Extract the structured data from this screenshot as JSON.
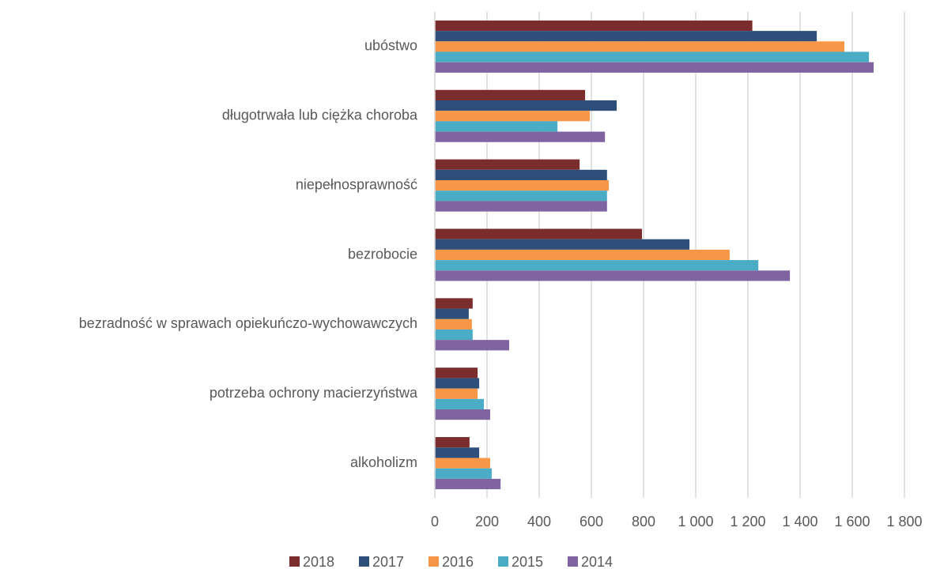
{
  "chart_data": {
    "type": "barh",
    "categories": [
      "ubóstwo",
      "długotrwała lub ciężka choroba",
      "niepełnosprawność",
      "bezrobocie",
      "bezradność w sprawach opiekuńczo-wychowawczych",
      "potrzeba ochrony macierzyństwa",
      "alkoholizm"
    ],
    "series": [
      {
        "name": "2018",
        "color": "#7b2c2c",
        "values": [
          1217,
          576,
          555,
          794,
          145,
          164,
          133
        ]
      },
      {
        "name": "2017",
        "color": "#2e4f79",
        "values": [
          1464,
          697,
          660,
          976,
          130,
          170,
          170
        ]
      },
      {
        "name": "2016",
        "color": "#f79646",
        "values": [
          1570,
          594,
          667,
          1130,
          142,
          164,
          212
        ]
      },
      {
        "name": "2015",
        "color": "#4bacc6",
        "values": [
          1664,
          470,
          660,
          1240,
          145,
          188,
          218
        ]
      },
      {
        "name": "2014",
        "color": "#8064a2",
        "values": [
          1682,
          652,
          660,
          1361,
          285,
          212,
          252
        ]
      }
    ],
    "xlim": [
      0,
      1800
    ],
    "xticks": [
      0,
      200,
      400,
      600,
      800,
      {
        "value": 1000,
        "label": "1 000"
      },
      {
        "value": 1200,
        "label": "1 200"
      },
      {
        "value": 1400,
        "label": "1 400"
      },
      {
        "value": 1600,
        "label": "1 600"
      },
      {
        "value": 1800,
        "label": "1 800"
      }
    ],
    "grid": true,
    "legend": "bottom"
  }
}
